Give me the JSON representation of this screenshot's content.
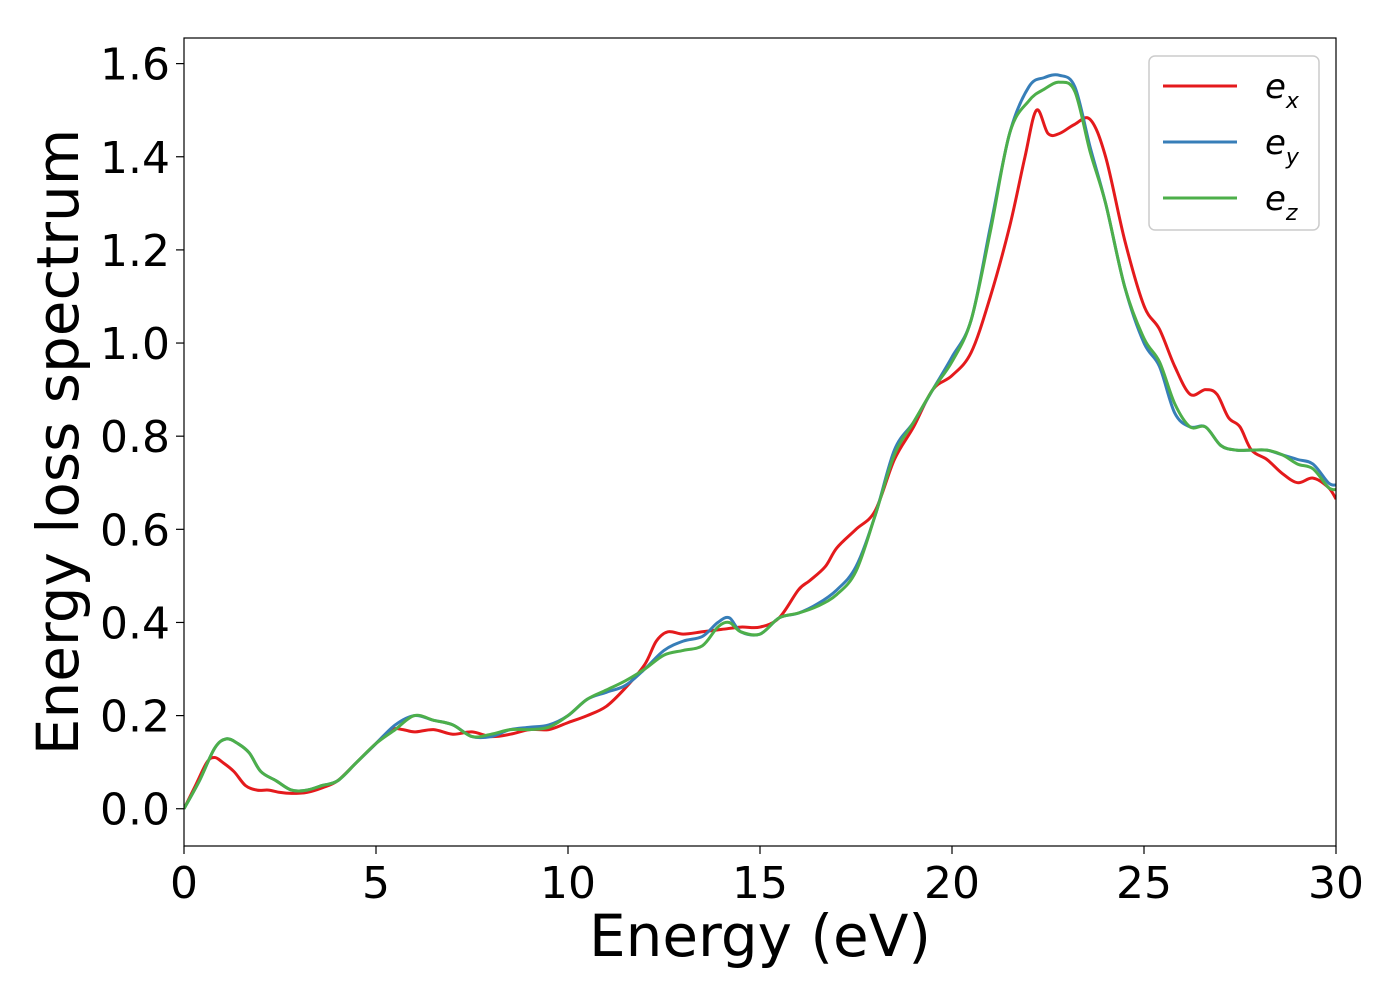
{
  "chart_data": {
    "type": "line",
    "title": "",
    "xlabel": "Energy (eV)",
    "ylabel": "Energy loss spectrum",
    "xlim": [
      0,
      30
    ],
    "ylim": [
      -0.08,
      1.655
    ],
    "xticks": [
      0,
      5,
      10,
      15,
      20,
      25,
      30
    ],
    "xtick_labels": [
      "0",
      "5",
      "10",
      "15",
      "20",
      "25",
      "30"
    ],
    "yticks": [
      0.0,
      0.2,
      0.4,
      0.6,
      0.8,
      1.0,
      1.2,
      1.4,
      1.6
    ],
    "ytick_labels": [
      "0.0",
      "0.2",
      "0.4",
      "0.6",
      "0.8",
      "1.0",
      "1.2",
      "1.4",
      "1.6"
    ],
    "grid": false,
    "legend_position": "top-right",
    "series": [
      {
        "name": "e_x",
        "label_base": "e",
        "label_sub": "x",
        "color": "#e41a1c",
        "x": [
          0,
          0.3,
          0.6,
          0.8,
          1.0,
          1.3,
          1.6,
          1.9,
          2.2,
          2.5,
          2.8,
          3.2,
          3.6,
          4.0,
          4.5,
          5.0,
          5.4,
          5.7,
          6.0,
          6.5,
          7.0,
          7.5,
          8.0,
          8.5,
          9.0,
          9.5,
          10.0,
          10.5,
          11.0,
          11.5,
          12.0,
          12.3,
          12.6,
          13.0,
          13.5,
          14.0,
          14.5,
          15.0,
          15.5,
          16.0,
          16.3,
          16.7,
          17.0,
          17.5,
          18.0,
          18.5,
          19.0,
          19.5,
          20.0,
          20.5,
          21.0,
          21.5,
          21.9,
          22.2,
          22.5,
          22.8,
          23.2,
          23.6,
          24.0,
          24.5,
          25.0,
          25.4,
          25.8,
          26.2,
          26.6,
          26.9,
          27.2,
          27.5,
          27.8,
          28.2,
          28.6,
          29.0,
          29.4,
          29.8,
          30.0
        ],
        "y": [
          0.0,
          0.05,
          0.1,
          0.11,
          0.1,
          0.08,
          0.05,
          0.04,
          0.04,
          0.035,
          0.033,
          0.035,
          0.045,
          0.06,
          0.1,
          0.14,
          0.17,
          0.17,
          0.165,
          0.17,
          0.16,
          0.165,
          0.155,
          0.16,
          0.17,
          0.17,
          0.185,
          0.2,
          0.22,
          0.26,
          0.31,
          0.36,
          0.38,
          0.375,
          0.38,
          0.385,
          0.39,
          0.39,
          0.41,
          0.47,
          0.49,
          0.52,
          0.56,
          0.6,
          0.64,
          0.75,
          0.82,
          0.9,
          0.93,
          0.98,
          1.1,
          1.25,
          1.4,
          1.5,
          1.45,
          1.45,
          1.47,
          1.48,
          1.4,
          1.22,
          1.08,
          1.03,
          0.95,
          0.89,
          0.9,
          0.89,
          0.84,
          0.82,
          0.77,
          0.75,
          0.72,
          0.7,
          0.71,
          0.69,
          0.665
        ]
      },
      {
        "name": "e_y",
        "label_base": "e",
        "label_sub": "y",
        "color": "#377eb8",
        "x": [
          0,
          0.4,
          0.8,
          1.1,
          1.4,
          1.7,
          2.0,
          2.4,
          2.8,
          3.2,
          3.6,
          4.0,
          4.5,
          5.0,
          5.5,
          6.0,
          6.5,
          7.0,
          7.5,
          8.0,
          8.5,
          9.0,
          9.5,
          10.0,
          10.5,
          11.0,
          11.5,
          12.0,
          12.5,
          13.0,
          13.5,
          13.9,
          14.2,
          14.5,
          15.0,
          15.5,
          16.0,
          16.5,
          17.0,
          17.5,
          18.0,
          18.5,
          19.0,
          19.5,
          20.0,
          20.5,
          21.0,
          21.5,
          22.0,
          22.4,
          22.8,
          23.2,
          23.6,
          24.0,
          24.5,
          25.0,
          25.4,
          25.8,
          26.2,
          26.6,
          27.0,
          27.4,
          27.8,
          28.2,
          28.6,
          29.0,
          29.4,
          29.8,
          30.0
        ],
        "y": [
          0.0,
          0.06,
          0.13,
          0.15,
          0.14,
          0.12,
          0.08,
          0.06,
          0.04,
          0.04,
          0.05,
          0.06,
          0.1,
          0.14,
          0.18,
          0.2,
          0.19,
          0.18,
          0.155,
          0.155,
          0.17,
          0.175,
          0.18,
          0.2,
          0.235,
          0.25,
          0.265,
          0.3,
          0.34,
          0.36,
          0.37,
          0.4,
          0.41,
          0.38,
          0.375,
          0.41,
          0.42,
          0.44,
          0.47,
          0.52,
          0.63,
          0.77,
          0.83,
          0.9,
          0.97,
          1.05,
          1.25,
          1.45,
          1.55,
          1.57,
          1.575,
          1.55,
          1.42,
          1.3,
          1.12,
          1.0,
          0.95,
          0.85,
          0.82,
          0.82,
          0.78,
          0.77,
          0.77,
          0.77,
          0.76,
          0.75,
          0.74,
          0.7,
          0.695
        ]
      },
      {
        "name": "e_z",
        "label_base": "e",
        "label_sub": "z",
        "color": "#4daf4a",
        "x": [
          0,
          0.4,
          0.8,
          1.1,
          1.4,
          1.7,
          2.0,
          2.4,
          2.8,
          3.2,
          3.6,
          4.0,
          4.5,
          5.0,
          5.5,
          6.0,
          6.5,
          7.0,
          7.5,
          8.0,
          8.5,
          9.0,
          9.5,
          10.0,
          10.5,
          11.0,
          11.5,
          12.0,
          12.5,
          13.0,
          13.5,
          13.9,
          14.2,
          14.5,
          15.0,
          15.5,
          16.0,
          16.5,
          17.0,
          17.5,
          18.0,
          18.5,
          19.0,
          19.5,
          20.0,
          20.5,
          21.0,
          21.5,
          22.0,
          22.4,
          22.8,
          23.2,
          23.6,
          24.0,
          24.5,
          25.0,
          25.4,
          25.8,
          26.2,
          26.6,
          27.0,
          27.4,
          27.8,
          28.2,
          28.6,
          29.0,
          29.4,
          29.8,
          30.0
        ],
        "y": [
          0.0,
          0.06,
          0.13,
          0.15,
          0.14,
          0.12,
          0.08,
          0.06,
          0.04,
          0.04,
          0.05,
          0.06,
          0.1,
          0.14,
          0.17,
          0.2,
          0.19,
          0.18,
          0.155,
          0.16,
          0.17,
          0.17,
          0.175,
          0.2,
          0.235,
          0.255,
          0.275,
          0.3,
          0.33,
          0.34,
          0.35,
          0.39,
          0.4,
          0.38,
          0.375,
          0.41,
          0.42,
          0.435,
          0.46,
          0.51,
          0.63,
          0.76,
          0.83,
          0.9,
          0.96,
          1.05,
          1.24,
          1.45,
          1.52,
          1.545,
          1.56,
          1.54,
          1.41,
          1.3,
          1.12,
          1.01,
          0.96,
          0.87,
          0.82,
          0.82,
          0.78,
          0.77,
          0.77,
          0.77,
          0.76,
          0.74,
          0.73,
          0.69,
          0.685
        ]
      }
    ]
  }
}
